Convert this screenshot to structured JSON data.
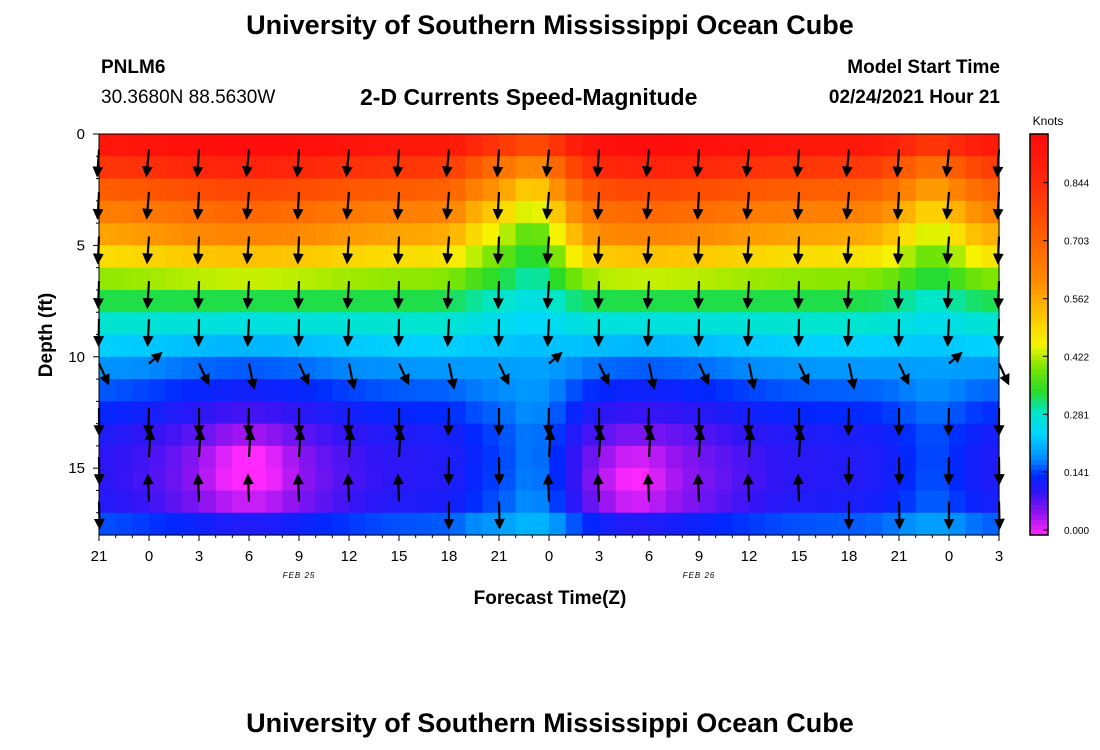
{
  "page_title": "University of Southern Mississippi Ocean Cube",
  "footer_title": "University of Southern Mississippi Ocean Cube",
  "station": {
    "name": "PNLM6",
    "coords": "30.3680N 88.5630W"
  },
  "model_start": {
    "label": "Model Start Time",
    "value": "02/24/2021 Hour 21"
  },
  "chart_data": {
    "type": "heatmap",
    "title": "2-D Currents Speed-Magnitude",
    "xlabel": "Forecast Time(Z)",
    "ylabel": "Depth (ft)",
    "x_ticks": [
      "21",
      "0",
      "3",
      "6",
      "9",
      "12",
      "15",
      "18",
      "21",
      "0",
      "3",
      "6",
      "9",
      "12",
      "15",
      "18",
      "21",
      "0",
      "3"
    ],
    "x_range_hours": [
      0,
      54
    ],
    "date_labels": [
      {
        "text": "FEB 25",
        "hour": 15
      },
      {
        "text": "FEB 26",
        "hour": 39
      }
    ],
    "y_ticks": [
      0,
      5,
      10,
      15
    ],
    "y_range_ft": [
      0,
      18
    ],
    "colorbar": {
      "label": "Knots",
      "min": 0.0,
      "max": 0.95,
      "ticks": [
        "0.844",
        "0.703",
        "0.562",
        "0.422",
        "0.281",
        "0.141",
        "0.000"
      ],
      "tick_values": [
        0.844,
        0.703,
        0.562,
        0.422,
        0.281,
        0.141,
        0.0
      ]
    },
    "speed_profiles_knots": {
      "depths_ft": [
        0.5,
        1.5,
        3,
        4.5,
        6,
        7.5,
        9,
        10.5,
        12,
        13.5,
        15,
        16.5,
        17.5
      ],
      "surface_dominated": [
        0.9,
        0.8,
        0.66,
        0.56,
        0.44,
        0.33,
        0.26,
        0.19,
        0.15,
        0.12,
        0.11,
        0.12,
        0.16
      ],
      "strong_ebb_core": [
        0.94,
        0.86,
        0.72,
        0.62,
        0.48,
        0.33,
        0.24,
        0.16,
        0.11,
        0.07,
        0.04,
        0.05,
        0.12
      ],
      "slack": [
        0.74,
        0.58,
        0.44,
        0.35,
        0.3,
        0.26,
        0.23,
        0.2,
        0.19,
        0.18,
        0.18,
        0.19,
        0.22
      ]
    },
    "arrow_direction_note": "Near-surface arrows point downward (southward); bottom arrows point upward near hours 3-18 and 27-42."
  }
}
